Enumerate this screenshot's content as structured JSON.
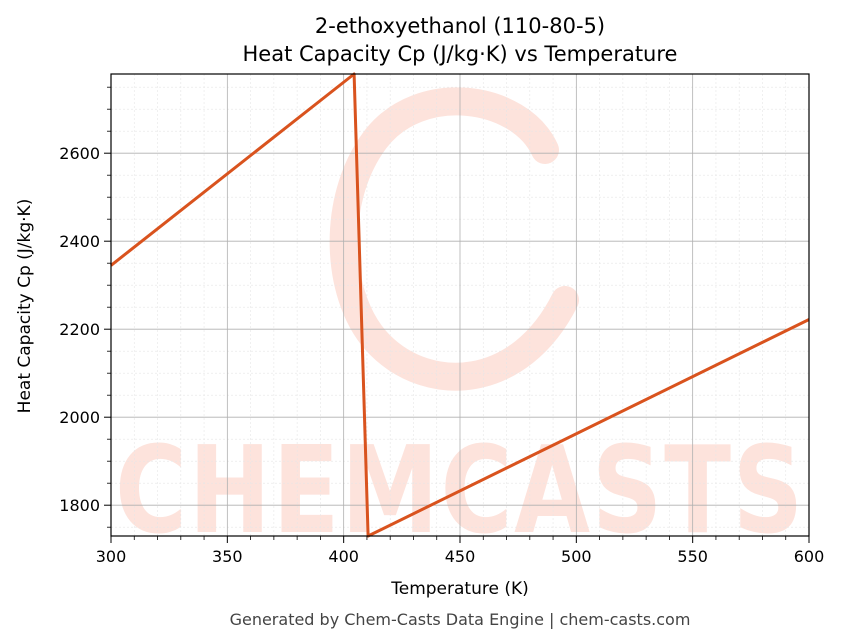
{
  "chart_data": {
    "type": "line",
    "title": [
      "2-ethoxyethanol (110-80-5)",
      "Heat Capacity Cp (J/kg·K) vs Temperature"
    ],
    "xlabel": "Temperature (K)",
    "ylabel": "Heat Capacity Cp (J/kg·K)",
    "xlim": [
      300,
      600
    ],
    "ylim": [
      1730,
      2780
    ],
    "xticks": [
      300,
      350,
      400,
      450,
      500,
      550,
      600
    ],
    "yticks": [
      1800,
      2000,
      2200,
      2400,
      2600
    ],
    "grid": true,
    "series": [
      {
        "color": "#d9531e",
        "x": [
          300,
          404.5,
          410.5,
          600
        ],
        "y": [
          2345,
          2780,
          1730,
          2222
        ]
      }
    ]
  },
  "watermark": {
    "text": "CHEMCASTS",
    "color": "#fde3dc"
  },
  "footer": "Generated by Chem-Casts Data Engine | chem-casts.com"
}
